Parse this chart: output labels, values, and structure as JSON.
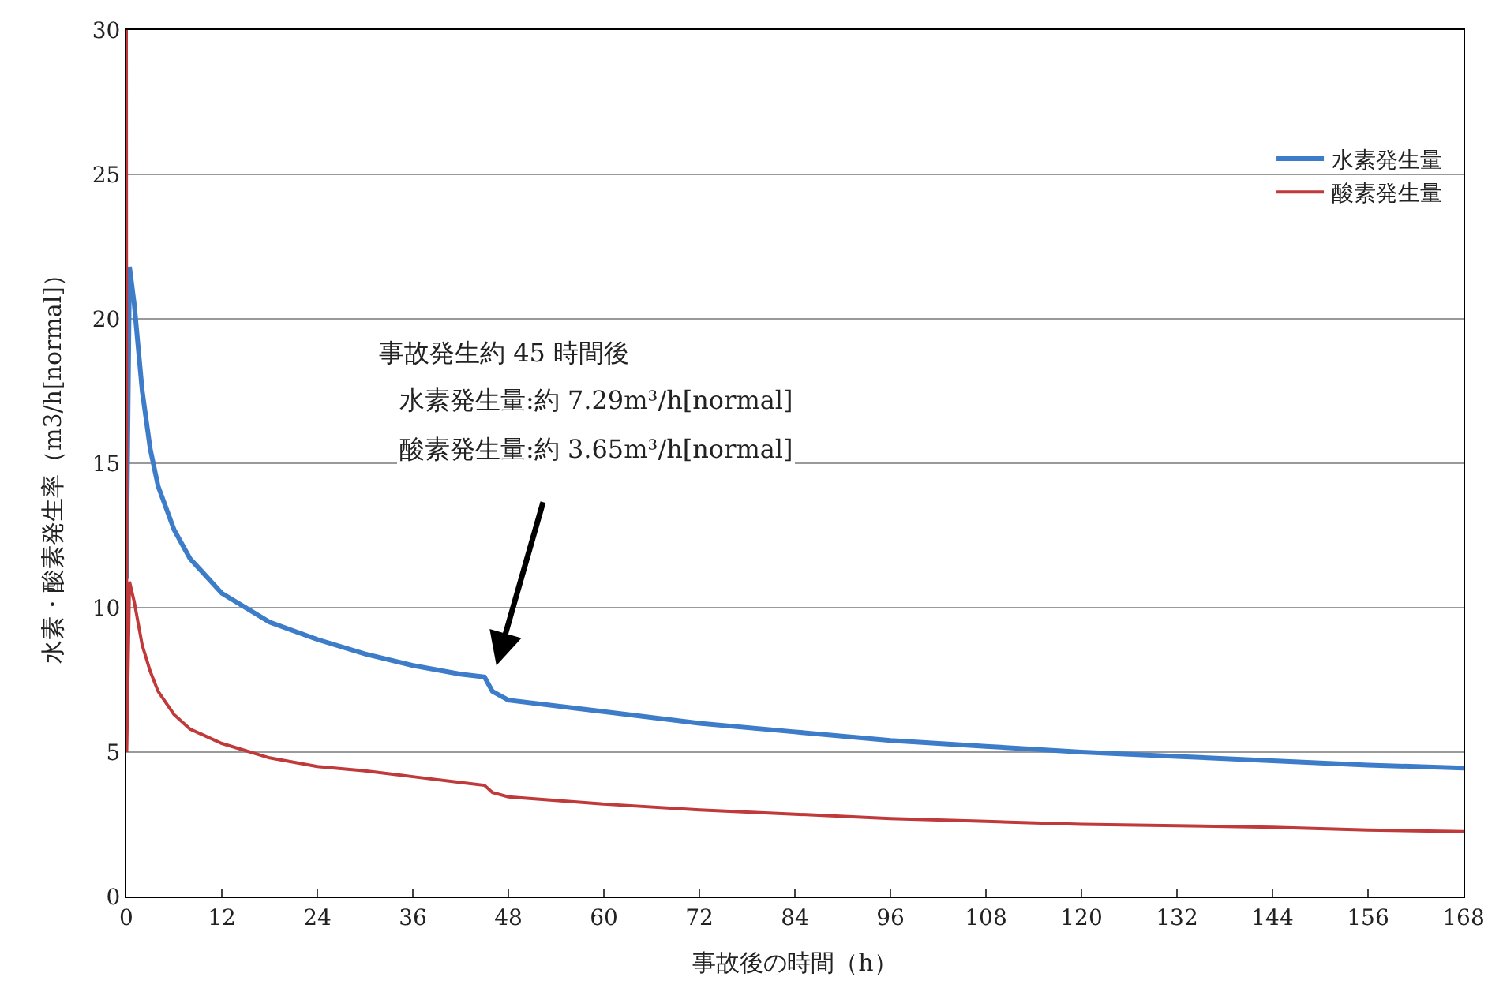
{
  "chart_data": {
    "type": "line",
    "xlabel": "事故後の時間（h）",
    "ylabel": "水素・酸素発生率（m3/h[normal]）",
    "xlim": [
      0,
      168
    ],
    "xticks": [
      0,
      12,
      24,
      36,
      48,
      60,
      72,
      84,
      96,
      108,
      120,
      132,
      144,
      156,
      168
    ],
    "ylim": [
      0,
      30
    ],
    "yticks": [
      0,
      5,
      10,
      15,
      20,
      25,
      30
    ],
    "grid": "y",
    "legend": "top right",
    "marker": "none",
    "line_style": "solid",
    "series": [
      {
        "name": "水素発生量",
        "color": "#3d7cc9",
        "x": [
          0,
          0.4,
          1,
          2,
          3,
          4,
          6,
          8,
          12,
          18,
          24,
          30,
          36,
          42,
          45,
          46,
          48,
          60,
          72,
          84,
          96,
          108,
          120,
          132,
          144,
          156,
          168
        ],
        "values": [
          11,
          21.8,
          20.5,
          17.5,
          15.5,
          14.2,
          12.7,
          11.7,
          10.5,
          9.5,
          8.9,
          8.4,
          8.0,
          7.7,
          7.6,
          7.1,
          6.8,
          6.4,
          6.0,
          5.7,
          5.4,
          5.2,
          5.0,
          4.85,
          4.7,
          4.55,
          4.45
        ]
      },
      {
        "name": "酸素発生量",
        "color": "#c0393b",
        "x": [
          0,
          0.05,
          0.4,
          1,
          2,
          3,
          4,
          6,
          8,
          12,
          18,
          24,
          30,
          36,
          42,
          45,
          46,
          48,
          60,
          72,
          84,
          96,
          108,
          120,
          132,
          144,
          156,
          168
        ],
        "values": [
          30,
          5,
          10.9,
          10.2,
          8.7,
          7.8,
          7.1,
          6.3,
          5.8,
          5.3,
          4.8,
          4.5,
          4.35,
          4.15,
          3.95,
          3.85,
          3.6,
          3.45,
          3.2,
          3.0,
          2.85,
          2.7,
          2.6,
          2.5,
          2.45,
          2.4,
          2.3,
          2.25
        ]
      }
    ],
    "annotations": [
      "事故発生約 45 時間後",
      "水素発生量:約 7.29m³/h[normal]",
      "酸素発生量:約 3.65m³/h[normal]"
    ]
  }
}
